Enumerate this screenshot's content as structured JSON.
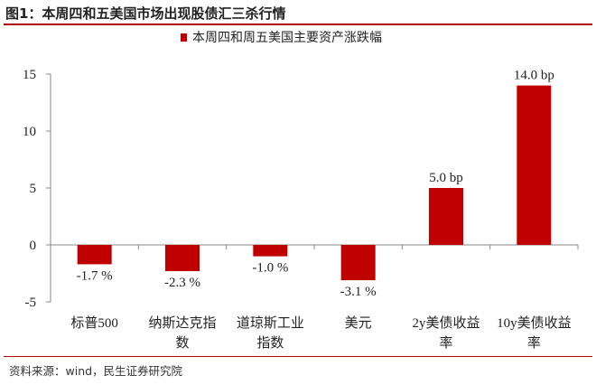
{
  "header": {
    "title": "图1：本周四和五美国市场出现股债汇三杀行情"
  },
  "footer": {
    "source": "资料来源：wind，民生证券研究院"
  },
  "colors": {
    "bar": "#c00000",
    "rule": "#b00000"
  },
  "chart_data": {
    "type": "bar",
    "categories": [
      [
        "标普500"
      ],
      [
        "纳斯达克指",
        "数"
      ],
      [
        "道琼斯工业",
        "指数"
      ],
      [
        "美元"
      ],
      [
        "2y美债收益",
        "率"
      ],
      [
        "10y美债收益",
        "率"
      ]
    ],
    "series": [
      {
        "name": "本周四和周五美国主要资产涨跌幅",
        "values": [
          -1.7,
          -2.3,
          -1.0,
          -3.1,
          5.0,
          14.0
        ],
        "labels": [
          "-1.7 %",
          "-2.3 %",
          "-1.0 %",
          "-3.1 %",
          "5.0 bp",
          "14.0 bp"
        ]
      }
    ],
    "ylim": [
      -5,
      15
    ],
    "yticks": [
      -5,
      0,
      5,
      10,
      15
    ],
    "legend": "top-center",
    "grid": false
  }
}
